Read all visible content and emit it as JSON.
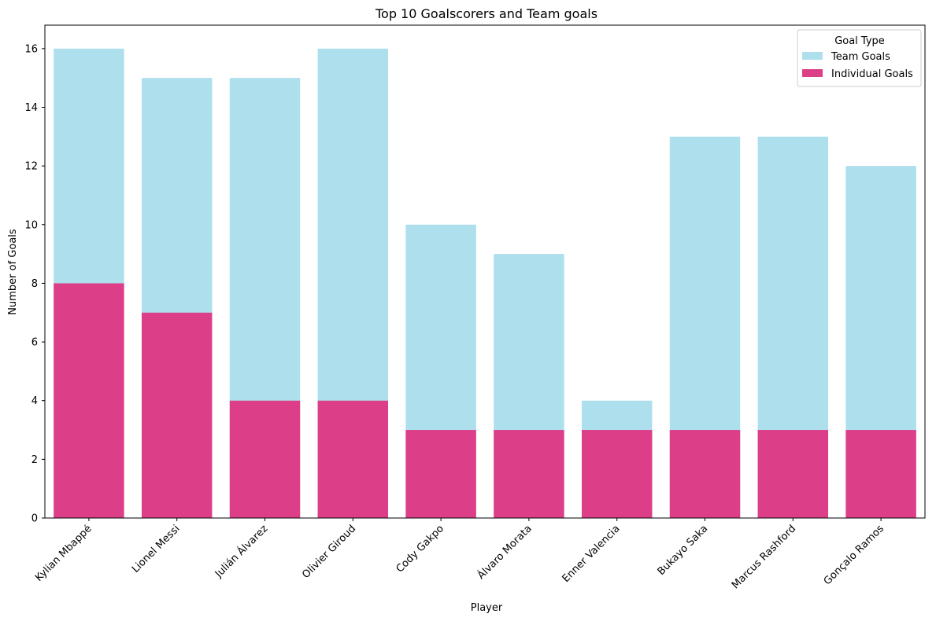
{
  "chart_data": {
    "type": "bar",
    "stacking": "overlay",
    "title": "Top 10 Goalscorers and Team goals",
    "xlabel": "Player",
    "ylabel": "Number of Goals",
    "ylim": [
      0,
      16.8
    ],
    "yticks": [
      0,
      2,
      4,
      6,
      8,
      10,
      12,
      14,
      16
    ],
    "grid": false,
    "legend": {
      "title": "Goal Type",
      "placement": "top-right"
    },
    "categories": [
      "Kylian Mbappé",
      "Lionel Messi",
      "Julián Álvarez",
      "Olivier Giroud",
      "Cody Gakpo",
      "Álvaro Morata",
      "Enner Valencia",
      "Bukayo Saka",
      "Marcus Rashford",
      "Gonçalo Ramos"
    ],
    "series": [
      {
        "name": "Team Goals",
        "color": "#aedfed",
        "values": [
          16,
          15,
          15,
          16,
          10,
          9,
          4,
          13,
          13,
          12
        ]
      },
      {
        "name": "Individual Goals",
        "color": "#dc3f87",
        "values": [
          8,
          7,
          4,
          4,
          3,
          3,
          3,
          3,
          3,
          3
        ]
      }
    ]
  }
}
